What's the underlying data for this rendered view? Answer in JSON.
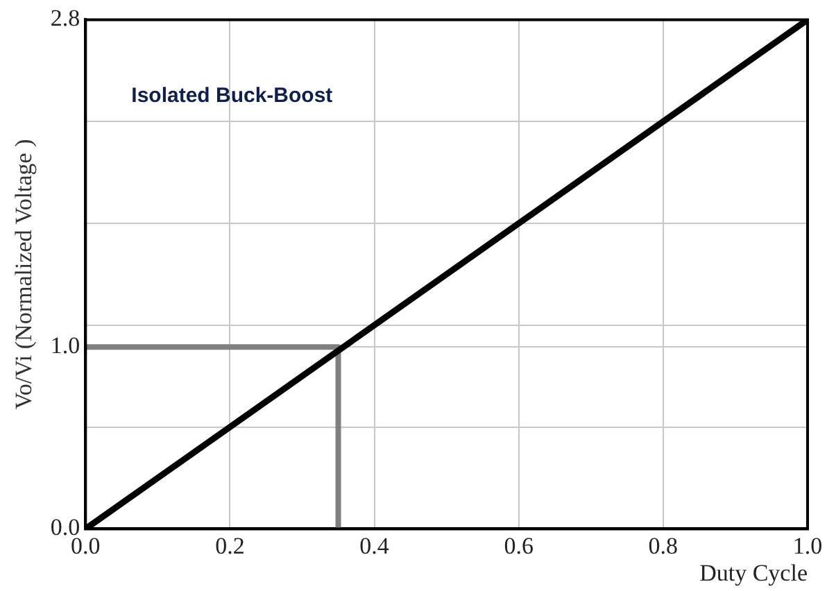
{
  "chart_data": {
    "type": "line",
    "xlabel": "Duty Cycle",
    "ylabel": "Vo/Vi (Normalized Voltage )",
    "annotations": [
      "Isolated Buck-Boost"
    ],
    "xlim": [
      0,
      1
    ],
    "xticks": [
      {
        "value": 0,
        "label": "0.0"
      },
      0.2,
      0.4,
      0.6,
      0.8,
      {
        "value": 1,
        "label": "1.0"
      }
    ],
    "ylim": [
      0,
      2.8
    ],
    "yticks": [
      {
        "value": 0,
        "label": "0.0"
      },
      {
        "value": 0.56,
        "label": null
      },
      {
        "value": 1,
        "label": "1.0"
      },
      {
        "value": 1.12,
        "label": null
      },
      {
        "value": 1.68,
        "label": null
      },
      {
        "value": 2.24,
        "label": null
      },
      2.8
    ],
    "grid": true,
    "legend": false,
    "marker": "none",
    "line_style": "solid",
    "series": [
      {
        "color": "#000000",
        "x": [
          0,
          1
        ],
        "values": [
          0,
          2.8
        ]
      },
      {
        "color": "#808080",
        "x": [
          0,
          0.35,
          0.35
        ],
        "values": [
          1,
          1,
          0
        ]
      }
    ]
  }
}
